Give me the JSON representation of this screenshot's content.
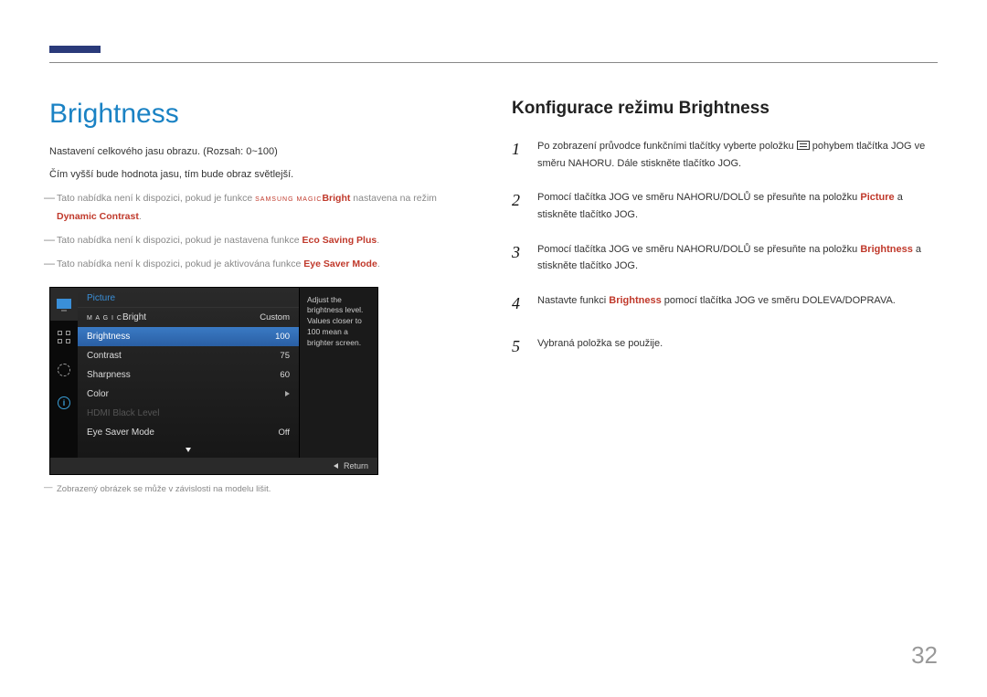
{
  "page_number": "32",
  "left": {
    "title": "Brightness",
    "para1": "Nastavení celkového jasu obrazu. (Rozsah: 0~100)",
    "para2": "Čím vyšší bude hodnota jasu, tím bude obraz světlejší.",
    "note1_a": "Tato nabídka není k dispozici, pokud je funkce ",
    "note1_mag": "SAMSUNG MAGIC",
    "note1_b": "Bright",
    "note1_c": " nastavena na režim ",
    "note1_d": "Dynamic Contrast",
    "note2_a": "Tato nabídka není k dispozici, pokud je nastavena funkce ",
    "note2_b": "Eco Saving Plus",
    "note3_a": "Tato nabídka není k dispozici, pokud je aktivována funkce ",
    "note3_b": "Eye Saver Mode",
    "caption": "Zobrazený obrázek se může v závislosti na modelu lišit."
  },
  "osd": {
    "header": "Picture",
    "rows": [
      {
        "labelPrefixSmall": "SAMSUNG",
        "labelPrefix": "M A G I C",
        "label": "Bright",
        "val": "Custom",
        "hl": false,
        "dim": false,
        "arrow": false
      },
      {
        "label": "Brightness",
        "val": "100",
        "hl": true,
        "dim": false,
        "arrow": false
      },
      {
        "label": "Contrast",
        "val": "75",
        "hl": false,
        "dim": false,
        "arrow": false
      },
      {
        "label": "Sharpness",
        "val": "60",
        "hl": false,
        "dim": false,
        "arrow": false
      },
      {
        "label": "Color",
        "val": "",
        "hl": false,
        "dim": false,
        "arrow": true
      },
      {
        "label": "HDMI Black Level",
        "val": "",
        "hl": false,
        "dim": true,
        "arrow": false
      },
      {
        "label": "Eye Saver Mode",
        "val": "Off",
        "hl": false,
        "dim": false,
        "arrow": false
      }
    ],
    "info": "Adjust the brightness level. Values closer to 100 mean a brighter screen.",
    "return": "Return"
  },
  "right": {
    "title": "Konfigurace režimu Brightness",
    "steps": [
      {
        "n": "1",
        "a": "Po zobrazení průvodce funkčními tlačítky vyberte položku ",
        "b": " pohybem tlačítka JOG ve směru NAHORU. Dále stiskněte tlačítko JOG.",
        "icon": true
      },
      {
        "n": "2",
        "a": "Pomocí tlačítka JOG ve směru NAHORU/DOLŮ se přesuňte na položku ",
        "kw": "Picture",
        "b": " a stiskněte tlačítko JOG."
      },
      {
        "n": "3",
        "a": "Pomocí tlačítka JOG ve směru NAHORU/DOLŮ se přesuňte na položku ",
        "kw": "Brightness",
        "b": " a stiskněte tlačítko JOG."
      },
      {
        "n": "4",
        "a": "Nastavte funkci ",
        "kw": "Brightness",
        "b": " pomocí tlačítka JOG ve směru DOLEVA/DOPRAVA."
      },
      {
        "n": "5",
        "a": "Vybraná položka se použije."
      }
    ]
  },
  "colors": {
    "accent_blue": "#1a82c4",
    "accent_red": "#c0392b",
    "osd_highlight": "#3a7ac4",
    "rule_mark": "#2a3a7a"
  }
}
